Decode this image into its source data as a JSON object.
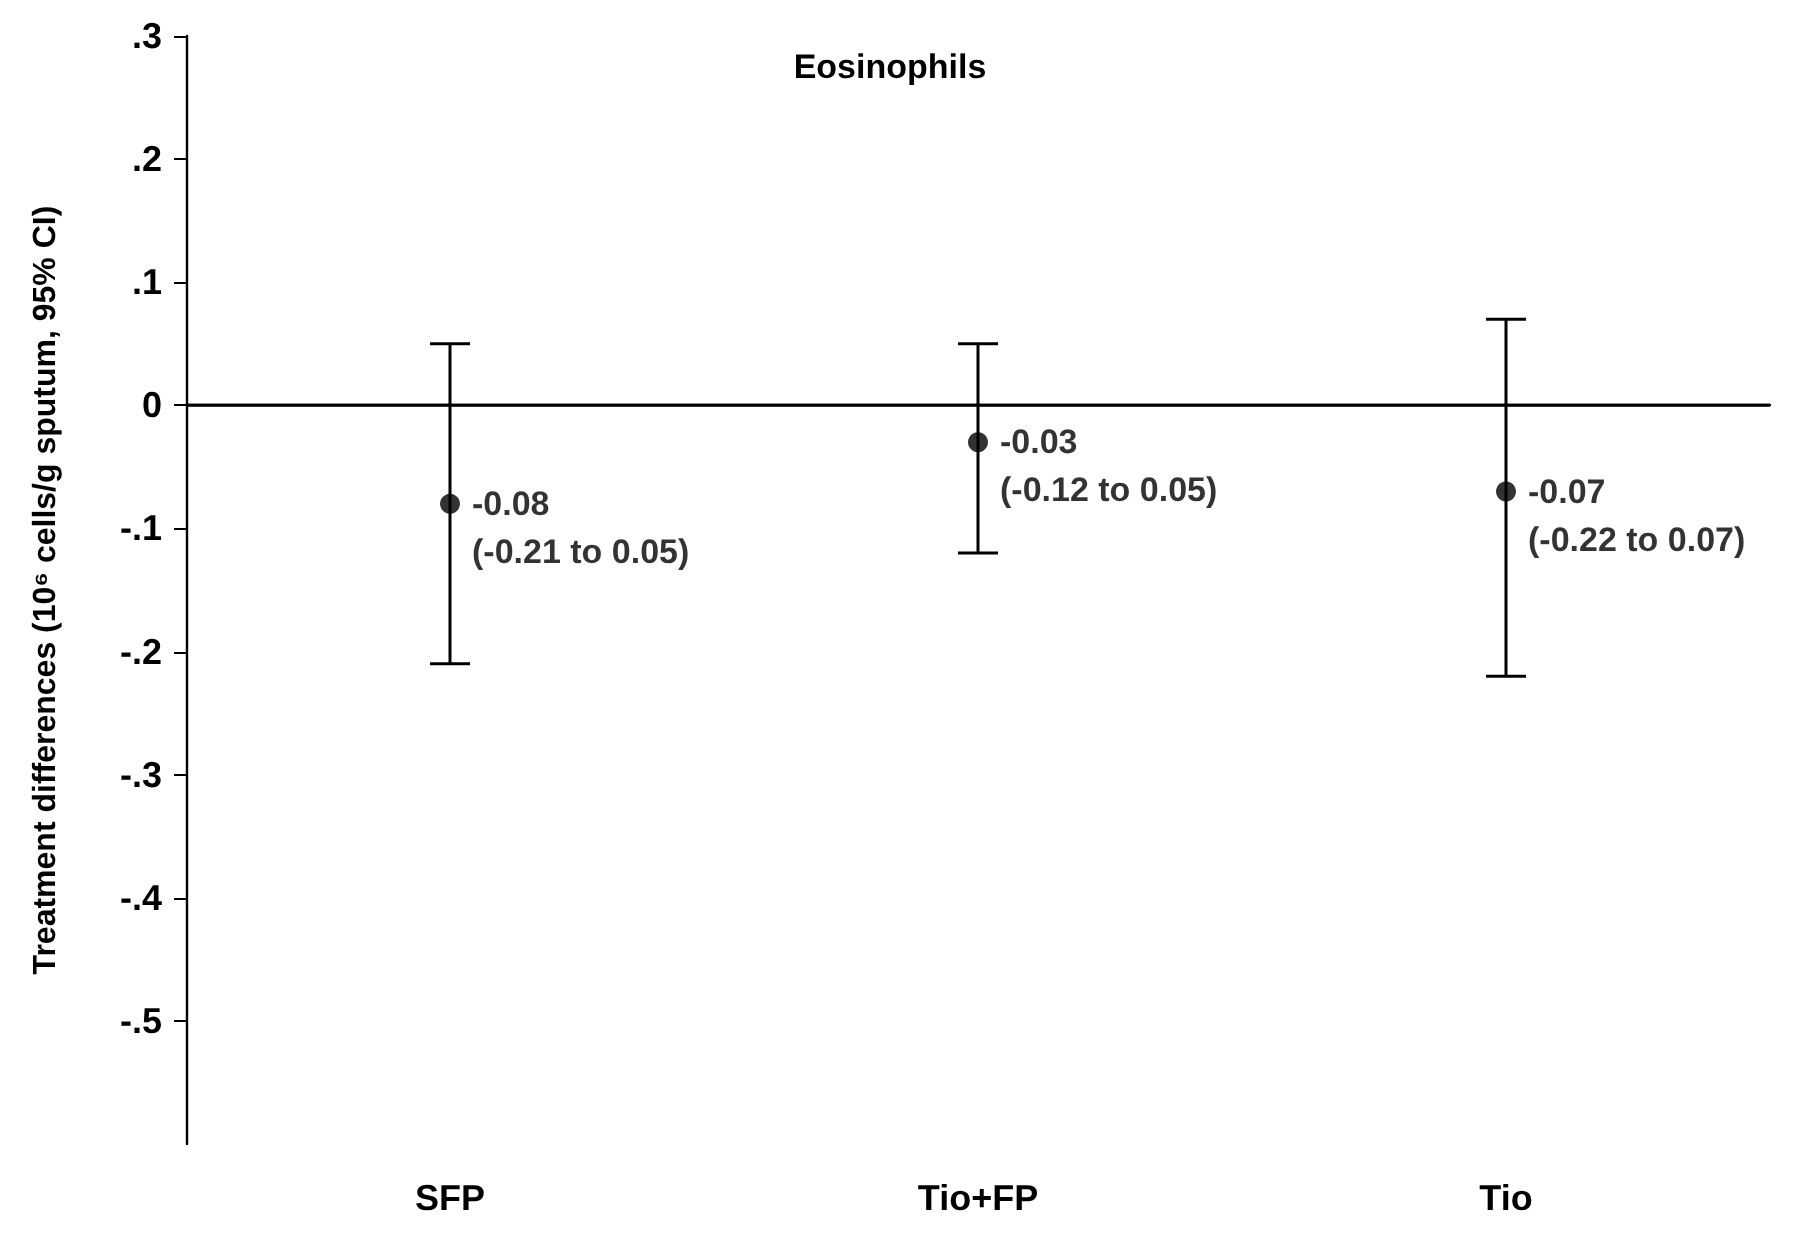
{
  "chart_data": {
    "type": "scatter",
    "title": "Eosinophils",
    "ylabel": "Treatment differences (10⁶ cells/g sputum, 95% CI)",
    "categories": [
      "SFP",
      "Tio+FP",
      "Tio"
    ],
    "values": [
      -0.08,
      -0.03,
      -0.07
    ],
    "errors": [
      [
        -0.21,
        0.05
      ],
      [
        -0.12,
        0.05
      ],
      [
        -0.22,
        0.07
      ]
    ],
    "value_labels": [
      "-0.08\n(-0.21 to 0.05)",
      "-0.03\n(-0.12 to 0.05)",
      "-0.07\n(-0.22 to 0.07)"
    ],
    "color": "#000000",
    "marker": "circle",
    "grid": false,
    "ylim": [
      -0.6,
      0.3
    ],
    "yticks": [
      {
        "value": 0.3,
        "label": ".3"
      },
      {
        "value": 0.2,
        "label": ".2"
      },
      {
        "value": 0.1,
        "label": ".1"
      },
      {
        "value": 0,
        "label": "0"
      },
      {
        "value": -0.1,
        "label": "-.1"
      },
      {
        "value": -0.2,
        "label": "-.2"
      },
      {
        "value": -0.3,
        "label": "-.3"
      },
      {
        "value": -0.4,
        "label": "-.4"
      },
      {
        "value": -0.5,
        "label": "-.5"
      }
    ],
    "ref_lines": [
      {
        "axis": "y",
        "value": 0,
        "color": "#000000"
      }
    ]
  }
}
